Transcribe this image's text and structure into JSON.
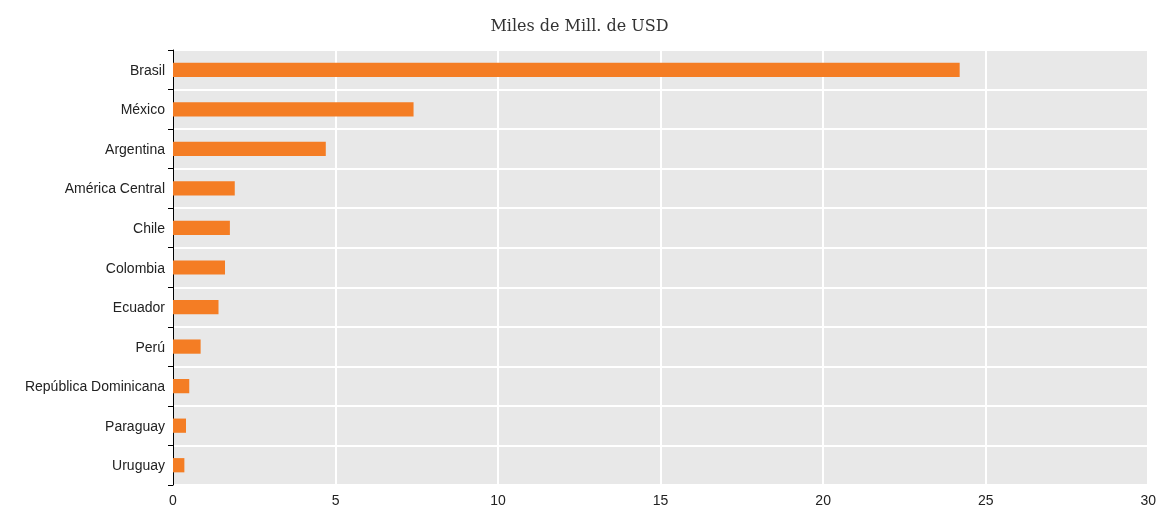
{
  "chart_data": {
    "type": "bar",
    "orientation": "horizontal",
    "title": "Miles de Mill. de USD",
    "categories": [
      "Brasil",
      "México",
      "Argentina",
      "América Central",
      "Chile",
      "Colombia",
      "Ecuador",
      "Perú",
      "República Dominicana",
      "Paraguay",
      "Uruguay"
    ],
    "values": [
      24.2,
      7.4,
      4.7,
      1.9,
      1.75,
      1.6,
      1.4,
      0.85,
      0.5,
      0.4,
      0.35
    ],
    "color": "#f47d24",
    "xlim": [
      0,
      30
    ],
    "xticks": [
      0,
      5,
      10,
      15,
      20,
      25,
      30
    ],
    "grid": true
  }
}
